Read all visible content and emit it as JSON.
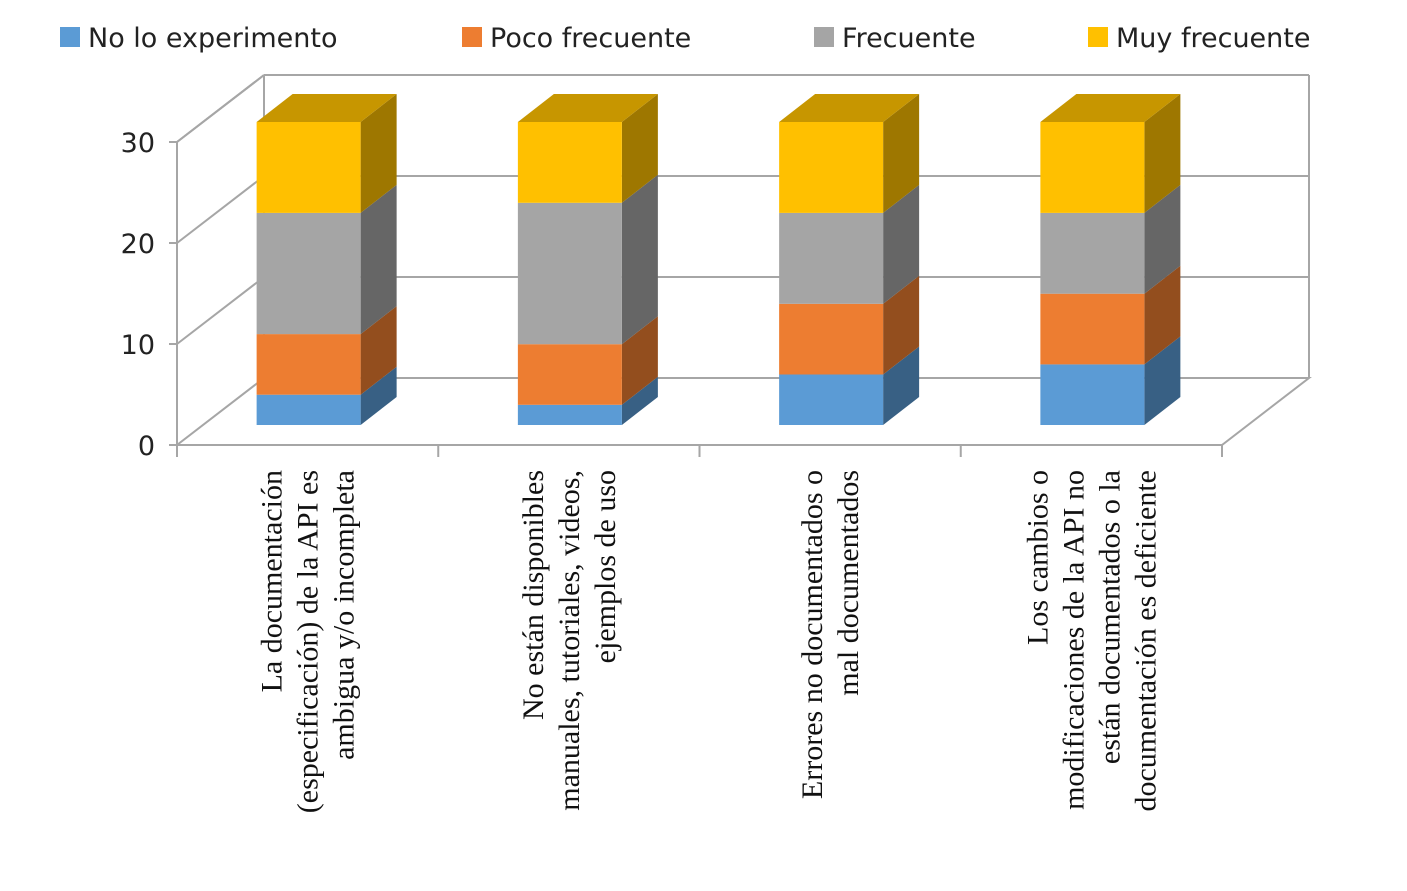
{
  "chart_data": {
    "type": "bar",
    "stacked": true,
    "three_d": true,
    "categories": [
      [
        "La documentación",
        "(especificación) de la API es",
        "ambigua y/o incompleta"
      ],
      [
        "No están disponibles",
        "manuales, tutoriales, videos,",
        "ejemplos de uso"
      ],
      [
        "Errores no documentados o",
        "mal documentados"
      ],
      [
        "Los cambios o",
        "modificaciones de la API no",
        "están documentados o la",
        "documentación es deficiente"
      ]
    ],
    "series": [
      {
        "name": "No lo experimento",
        "color": "#5B9BD5",
        "values": [
          3,
          2,
          5,
          6
        ]
      },
      {
        "name": "Poco frecuente",
        "color": "#ED7D31",
        "values": [
          6,
          6,
          7,
          7
        ]
      },
      {
        "name": "Frecuente",
        "color": "#A5A5A5",
        "values": [
          12,
          14,
          9,
          8
        ]
      },
      {
        "name": "Muy frecuente",
        "color": "#FFC000",
        "values": [
          9,
          8,
          9,
          9
        ]
      }
    ],
    "ylim": [
      0,
      30
    ],
    "yticks": [
      0,
      10,
      20,
      30
    ],
    "legend_position": "top",
    "grid": true
  }
}
